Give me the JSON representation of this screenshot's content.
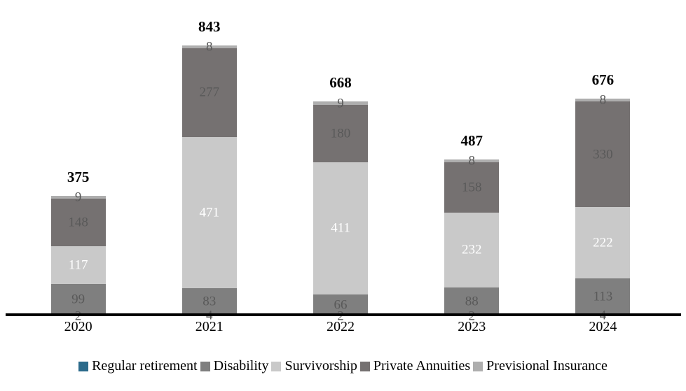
{
  "chart_data": {
    "type": "bar",
    "stacked": true,
    "title": "",
    "xlabel": "",
    "ylabel": "",
    "categories": [
      "2020",
      "2021",
      "2022",
      "2023",
      "2024"
    ],
    "series": [
      {
        "name": "Regular retirement",
        "color": "#2b6a8b",
        "label_color": "#595959",
        "values": [
          2,
          4,
          2,
          2,
          4
        ]
      },
      {
        "name": "Disability",
        "color": "#7f7f7f",
        "label_color": "#595959",
        "values": [
          99,
          83,
          66,
          88,
          113
        ]
      },
      {
        "name": "Survivorship",
        "color": "#c9c9c9",
        "label_color": "#ffffff",
        "values": [
          117,
          471,
          411,
          232,
          222
        ]
      },
      {
        "name": "Private Annuities",
        "color": "#757171",
        "label_color": "#595959",
        "values": [
          148,
          277,
          180,
          158,
          330
        ]
      },
      {
        "name": "Previsional Insurance",
        "color": "#aeaeae",
        "label_color": "#595959",
        "values": [
          9,
          8,
          9,
          8,
          8
        ]
      }
    ],
    "totals": [
      375,
      843,
      668,
      487,
      676
    ],
    "ylim": [
      0,
      900
    ],
    "grid": false,
    "legend_position": "bottom",
    "axis_color": "#000000",
    "total_label_style": "bold"
  }
}
